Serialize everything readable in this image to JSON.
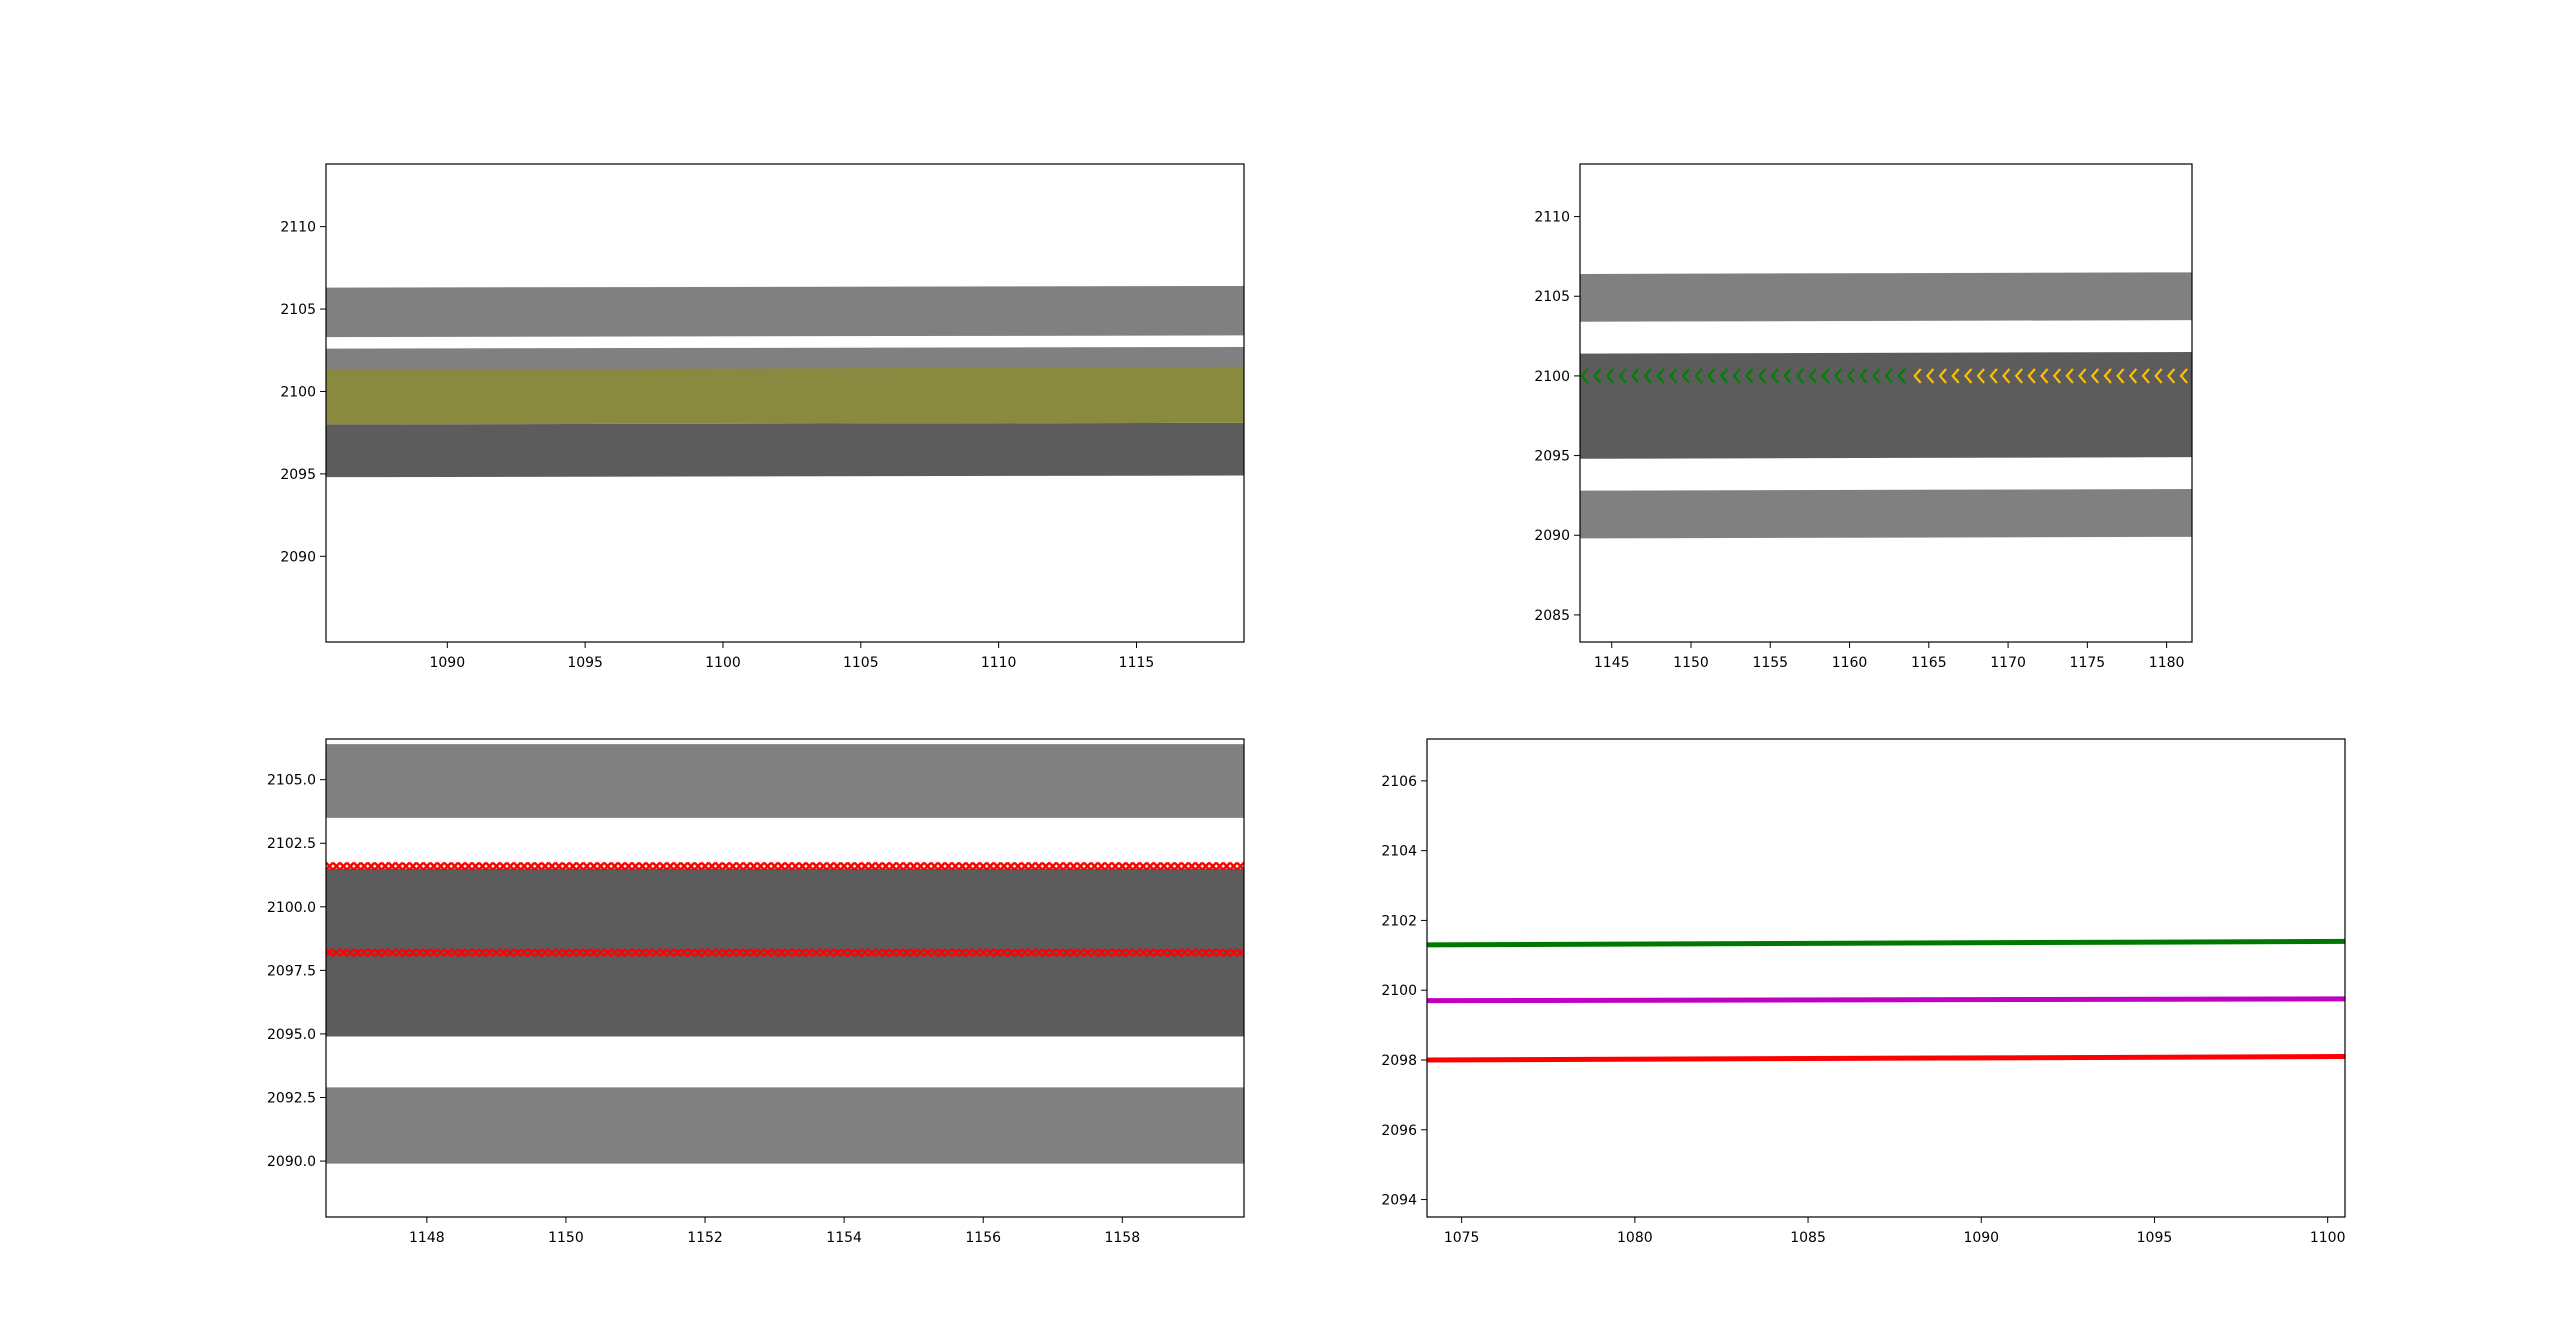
{
  "chart_data": [
    {
      "type": "area",
      "title": "",
      "xlabel": "",
      "ylabel": "",
      "xlim": [
        1085.6,
        1118.9
      ],
      "ylim": [
        2084.8,
        2113.8
      ],
      "x_ticks": [
        "1090",
        "1095",
        "1100",
        "1105",
        "1110",
        "1115"
      ],
      "y_ticks": [
        "2090",
        "2095",
        "2100",
        "2105",
        "2110"
      ],
      "grid": false,
      "lanes": [
        {
          "kind": "lane",
          "color": "#808080",
          "x": [
            1085.6,
            1118.9
          ],
          "lower": [
            2099.6,
            2099.7
          ],
          "upper": [
            2102.6,
            2102.7
          ]
        },
        {
          "kind": "lane",
          "color": "#5c5c5c",
          "x": [
            1085.6,
            1118.9
          ],
          "lower": [
            2094.8,
            2094.9
          ],
          "upper": [
            2098.0,
            2098.1
          ]
        },
        {
          "kind": "lane",
          "color": "#898a40",
          "x": [
            1085.6,
            1118.9
          ],
          "lower": [
            2098.0,
            2098.1
          ],
          "upper": [
            2101.3,
            2101.5
          ]
        },
        {
          "kind": "lane",
          "color": "#808080",
          "x": [
            1085.6,
            1118.9
          ],
          "lower": [
            2103.3,
            2103.4
          ],
          "upper": [
            2106.3,
            2106.4
          ]
        }
      ]
    },
    {
      "type": "area",
      "title": "",
      "xlabel": "",
      "ylabel": "",
      "xlim": [
        1143.0,
        1181.6
      ],
      "ylim": [
        2083.3,
        2113.3
      ],
      "x_ticks": [
        "1145",
        "1150",
        "1155",
        "1160",
        "1165",
        "1170",
        "1175",
        "1180"
      ],
      "y_ticks": [
        "2085",
        "2090",
        "2095",
        "2100",
        "2105",
        "2110"
      ],
      "grid": false,
      "lanes": [
        {
          "kind": "lane",
          "color": "#808080",
          "x": [
            1143.0,
            1181.6
          ],
          "lower": [
            2089.8,
            2089.9
          ],
          "upper": [
            2092.8,
            2092.9
          ]
        },
        {
          "kind": "lane",
          "color": "#5c5c5c",
          "x": [
            1143.0,
            1181.6
          ],
          "lower": [
            2094.8,
            2094.9
          ],
          "upper": [
            2101.4,
            2101.5
          ]
        },
        {
          "kind": "lane",
          "color": "#808080",
          "x": [
            1143.0,
            1181.6
          ],
          "lower": [
            2103.4,
            2103.5
          ],
          "upper": [
            2106.4,
            2106.5
          ]
        }
      ],
      "series": [
        {
          "marker": "<",
          "color": "#008000",
          "y": 2100.0,
          "x_start": 1143.3,
          "x_end": 1163.3,
          "step": 0.8
        },
        {
          "marker": "<",
          "color": "#ffc000",
          "y": 2100.0,
          "x_start": 1164.3,
          "x_end": 1181.3,
          "step": 0.8
        }
      ]
    },
    {
      "type": "area",
      "title": "",
      "xlabel": "",
      "ylabel": "",
      "xlim": [
        1146.55,
        1159.75
      ],
      "ylim": [
        2087.8,
        2106.6
      ],
      "x_ticks": [
        "1148",
        "1150",
        "1152",
        "1154",
        "1156",
        "1158"
      ],
      "y_ticks": [
        "2090.0",
        "2092.5",
        "2095.0",
        "2097.5",
        "2100.0",
        "2102.5",
        "2105.0"
      ],
      "grid": false,
      "lanes": [
        {
          "kind": "lane",
          "color": "#808080",
          "x": [
            1146.55,
            1159.75
          ],
          "lower": [
            2089.9,
            2089.9
          ],
          "upper": [
            2092.9,
            2092.9
          ]
        },
        {
          "kind": "lane",
          "color": "#5c5c5c",
          "x": [
            1146.55,
            1159.75
          ],
          "lower": [
            2094.9,
            2094.9
          ],
          "upper": [
            2101.5,
            2101.5
          ]
        },
        {
          "kind": "lane",
          "color": "#808080",
          "x": [
            1146.55,
            1159.75
          ],
          "lower": [
            2103.5,
            2103.5
          ],
          "upper": [
            2106.4,
            2106.4
          ]
        }
      ],
      "series": [
        {
          "marker": "x",
          "color": "#ff0000",
          "y": 2101.6,
          "x_start": 1146.6,
          "x_end": 1159.7,
          "step": 0.1
        },
        {
          "marker": "x",
          "color": "#ff0000",
          "y": 2098.2,
          "x_start": 1146.6,
          "x_end": 1159.7,
          "step": 0.1
        }
      ]
    },
    {
      "type": "line",
      "title": "",
      "xlabel": "",
      "ylabel": "",
      "xlim": [
        1074.0,
        1100.5
      ],
      "ylim": [
        2093.5,
        2107.2
      ],
      "x_ticks": [
        "1075",
        "1080",
        "1085",
        "1090",
        "1095",
        "1100"
      ],
      "y_ticks": [
        "2094",
        "2096",
        "2098",
        "2100",
        "2102",
        "2104",
        "2106"
      ],
      "grid": false,
      "series": [
        {
          "color": "#007800",
          "x": [
            1074.0,
            1100.5
          ],
          "y": [
            2101.3,
            2101.4
          ]
        },
        {
          "color": "#c000c0",
          "x": [
            1074.0,
            1100.5
          ],
          "y": [
            2099.7,
            2099.75
          ]
        },
        {
          "color": "#ff0000",
          "x": [
            1074.0,
            1100.5
          ],
          "y": [
            2098.0,
            2098.1
          ]
        }
      ]
    }
  ]
}
